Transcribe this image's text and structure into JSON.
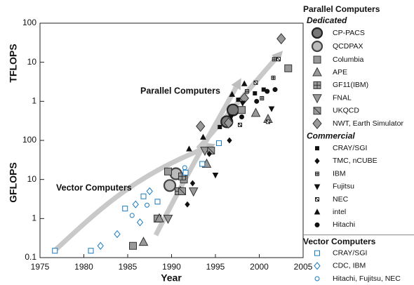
{
  "chart_data": {
    "type": "scatter",
    "log_y": true,
    "x_label": "Year",
    "y_labels": [
      "TFLOPS",
      "GFLOPS"
    ],
    "xlim": [
      1975,
      2005
    ],
    "xticks": [
      1975,
      1980,
      1985,
      1990,
      1995,
      2000,
      2005
    ],
    "ylim": [
      0.1,
      100000
    ],
    "yticks": [
      0.1,
      1,
      10,
      100,
      {
        "value": 1000,
        "label": "1"
      },
      {
        "value": 10000,
        "label": "10"
      },
      {
        "value": 100000,
        "label": "100"
      }
    ],
    "annotations": [
      "Vector Computers",
      "Parallel Computers"
    ],
    "groups": [
      {
        "title": "Parallel Computers",
        "subgroups": [
          {
            "title": "Dedicated",
            "series": [
              {
                "name": "CP-PACS",
                "marker": "circle",
                "size": 8,
                "fill": "#777777",
                "color": "#222222",
                "x": [
                  1996.3,
                  1997
                ],
                "values": [
                  300,
                  600
                ]
              },
              {
                "name": "QCDPAX",
                "marker": "circle",
                "size": 8,
                "fill": "#bbbbbb",
                "color": "#444444",
                "x": [
                  1989.8,
                  1990.5
                ],
                "values": [
                  7,
                  14
                ]
              },
              {
                "name": "Columbia",
                "marker": "square",
                "size": 5,
                "fill": "#999999",
                "color": "#333333",
                "x": [
                  1985.6,
                  1988.4,
                  1989.6,
                  1991.4,
                  1998,
                  2003.3
                ],
                "values": [
                  0.2,
                  1,
                  16,
                  10,
                  600,
                  7000
                ]
              },
              {
                "name": "APE",
                "marker": "triangle",
                "size": 6,
                "fill": "#999999",
                "color": "#333333",
                "x": [
                  1986.8,
                  1988.6,
                  1991,
                  1994,
                  1999.6,
                  2001
                ],
                "values": [
                  0.25,
                  1,
                  5,
                  25,
                  500,
                  350
                ]
              },
              {
                "name": "GF11(IBM)",
                "marker": "square-plus",
                "size": 5,
                "fill": "#999999",
                "color": "#333333",
                "x": [
                  1991.2,
                  1990.8
                ],
                "values": [
                  12,
                  5
                ]
              },
              {
                "name": "FNAL",
                "marker": "triangle-down",
                "size": 6,
                "fill": "#999999",
                "color": "#333333",
                "x": [
                  1989.6,
                  1992.5,
                  1993.8
                ],
                "values": [
                  1,
                  5,
                  55
                ]
              },
              {
                "name": "UKQCD",
                "marker": "square-x",
                "size": 5,
                "fill": "#999999",
                "color": "#333333",
                "x": [
                  1991.2,
                  1994.5
                ],
                "values": [
                  5,
                  55
                ]
              },
              {
                "name": "NWT, Earth Simulator",
                "marker": "diamond",
                "size": 6,
                "fill": "#999999",
                "color": "#333333",
                "x": [
                  1993.3,
                  1996.5,
                  1998.3,
                  2002.5
                ],
                "values": [
                  230,
                  280,
                  1200,
                  40000
                ]
              }
            ]
          },
          {
            "title": "Commercial",
            "series": [
              {
                "name": "CRAY/SGI",
                "marker": "square",
                "size": 2.5,
                "fill": "#111111",
                "color": "#111111",
                "x": [
                  1997.6,
                  1999.5,
                  1995.5,
                  2000.5
                ],
                "values": [
                  1100,
                  1600,
                  220,
                  2000
                ]
              },
              {
                "name": "TMC, nCUBE",
                "marker": "diamond",
                "size": 3,
                "fill": "#111111",
                "color": "#111111",
                "x": [
                  1991.8,
                  1992.4,
                  1996.6,
                  1994.3
                ],
                "values": [
                  2.3,
                  8,
                  100,
                  45
                ]
              },
              {
                "name": "IBM",
                "marker": "square-plus",
                "size": 2.5,
                "fill": "#ffffff",
                "color": "#111111",
                "x": [
                  1998.6,
                  2000.3,
                  2001.6,
                  2001.7
                ],
                "values": [
                  1800,
                  1200,
                  4000,
                  12000
                ]
              },
              {
                "name": "Fujitsu",
                "marker": "triangle-down",
                "size": 3.5,
                "fill": "#111111",
                "color": "#111111",
                "x": [
                  1995,
                  1996.8,
                  1998.1,
                  2001.4
                ],
                "values": [
                  13,
                  400,
                  900,
                  650
                ]
              },
              {
                "name": "NEC",
                "marker": "square-x",
                "size": 2.5,
                "fill": "#ffffff",
                "color": "#111111",
                "x": [
                  1997.8,
                  1999.6,
                  2001,
                  2002.2
                ],
                "values": [
                  250,
                  3000,
                  300,
                  12000
                ]
              },
              {
                "name": "intel",
                "marker": "triangle",
                "size": 3.5,
                "fill": "#111111",
                "color": "#111111",
                "x": [
                  1992,
                  1993.6,
                  1996.9,
                  1998.3
                ],
                "values": [
                  60,
                  120,
                  1500,
                  2800
                ]
              },
              {
                "name": "Hitachi",
                "marker": "circle",
                "size": 3,
                "fill": "#111111",
                "color": "#111111",
                "x": [
                  1998,
                  1999.7,
                  2000.9,
                  2001.8
                ],
                "values": [
                  400,
                  1000,
                  1800,
                  2000
                ]
              }
            ]
          }
        ]
      },
      {
        "title": "Vector Computers",
        "subgroups": [
          {
            "series": [
              {
                "name": "CRAY/SGI",
                "marker": "square",
                "size": 3.5,
                "fill": "#ffffff",
                "color": "#1a7abf",
                "x": [
                  1976.7,
                  1980.8,
                  1984.7,
                  1986.8,
                  1988.4,
                  1991.6,
                  1993.5,
                  1995.4
                ],
                "values": [
                  0.15,
                  0.15,
                  1.8,
                  3.7,
                  2.7,
                  15,
                  25,
                  85
                ]
              },
              {
                "name": "CDC, IBM",
                "marker": "diamond",
                "size": 4,
                "fill": "#ffffff",
                "color": "#1a7abf",
                "x": [
                  1981.9,
                  1983.8,
                  1985.9,
                  1987.5,
                  1986.4
                ],
                "values": [
                  0.2,
                  0.4,
                  2.3,
                  5,
                  0.8
                ]
              },
              {
                "name": "Hitachi, Fujitsu, NEC",
                "marker": "circle",
                "size": 3,
                "fill": "#ffffff",
                "color": "#1a7abf",
                "x": [
                  1985.5,
                  1991.5,
                  1987.2
                ],
                "values": [
                  1.2,
                  20,
                  2.2
                ]
              }
            ]
          }
        ]
      }
    ]
  }
}
